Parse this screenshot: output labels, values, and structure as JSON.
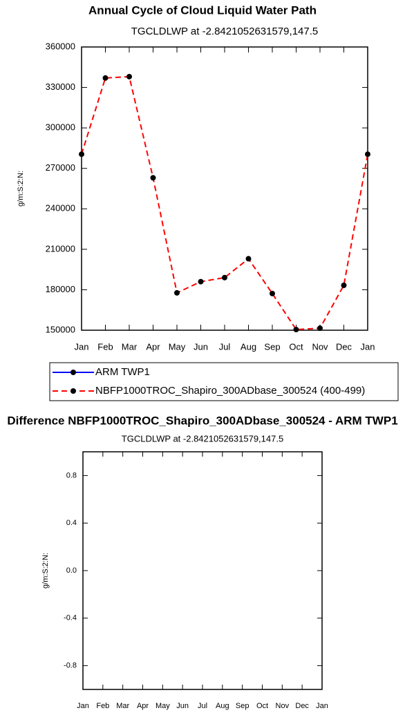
{
  "chart_data": [
    {
      "type": "line",
      "title": "Annual Cycle of Cloud Liquid Water Path",
      "subtitle": "TGCLDLWP at -2.8421052631579,147.5",
      "y_label": "g/m:S:2:N:",
      "categories": [
        "Jan",
        "Feb",
        "Mar",
        "Apr",
        "May",
        "Jun",
        "Jul",
        "Aug",
        "Sep",
        "Oct",
        "Nov",
        "Dec",
        "Jan"
      ],
      "series": [
        {
          "name": "ARM TWP1",
          "color": "#0000ff",
          "line_style": "solid",
          "marker": "circle",
          "values": [
            null,
            null,
            null,
            null,
            null,
            null,
            null,
            null,
            null,
            null,
            null,
            null,
            null
          ]
        },
        {
          "name": "NBFP1000TROC_Shapiro_300ADbase_300524 (400-499)",
          "color": "#ff0000",
          "line_style": "dashed",
          "marker": "circle",
          "values": [
            280500,
            337000,
            338000,
            263000,
            177700,
            186000,
            189000,
            203000,
            177200,
            150500,
            151500,
            183300,
            280500
          ]
        }
      ],
      "ylim": [
        150000,
        360000
      ],
      "yticks": [
        150000,
        180000,
        210000,
        240000,
        270000,
        300000,
        330000,
        360000
      ],
      "legend": "bottom"
    },
    {
      "type": "line",
      "title": "Difference NBFP1000TROC_Shapiro_300ADbase_300524 - ARM TWP1",
      "subtitle": "TGCLDLWP at -2.8421052631579,147.5",
      "y_label": "g/m:S:2:N:",
      "categories": [
        "Jan",
        "Feb",
        "Mar",
        "Apr",
        "May",
        "Jun",
        "Jul",
        "Aug",
        "Sep",
        "Oct",
        "Nov",
        "Dec",
        "Jan"
      ],
      "series": [],
      "ylim": [
        -1,
        1
      ],
      "yticks": [
        -0.8,
        -0.4,
        {
          "value": 0,
          "label": "0.0"
        },
        0.4,
        0.8
      ]
    }
  ]
}
